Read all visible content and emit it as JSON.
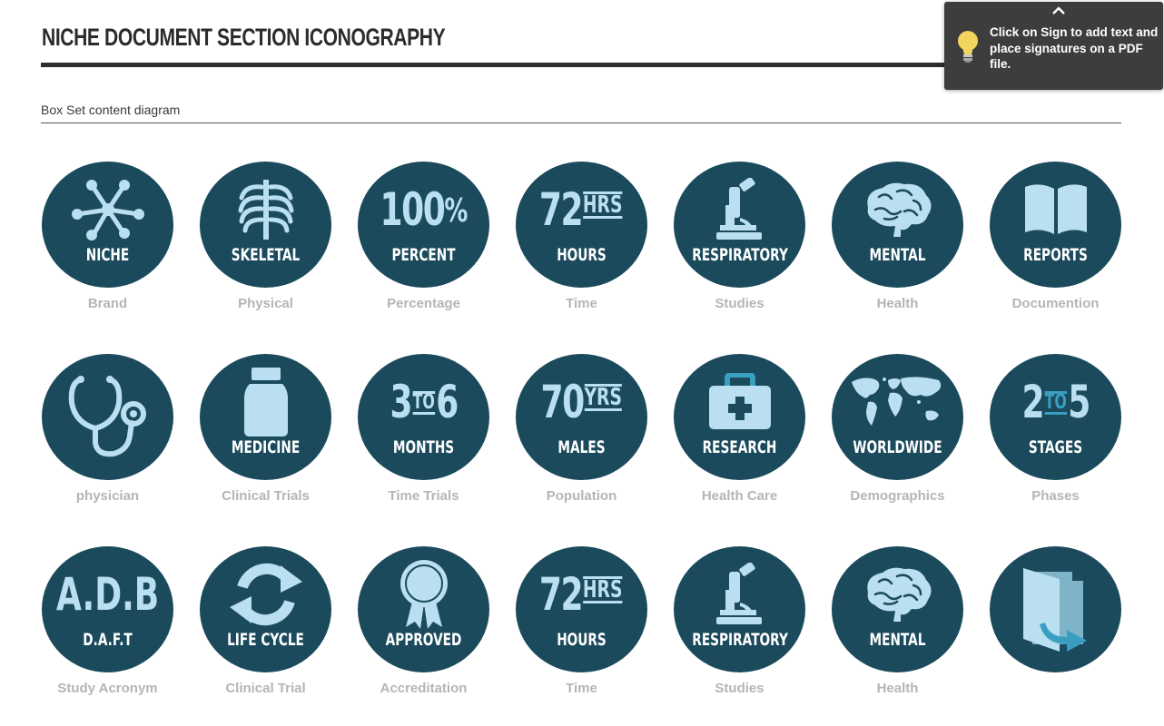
{
  "header": {
    "title": "NICHE DOCUMENT SECTION ICONOGRAPHY",
    "subtitle": "Box Set content diagram"
  },
  "tooltip": {
    "text": "Click on Sign to add text and place signatures on a PDF file.",
    "icon": "lightbulb-icon",
    "collapse_icon": "chevron-up-icon"
  },
  "colors": {
    "circle": "#1a4a5c",
    "icon": "#b9dff0",
    "label": "#ffffff",
    "caption": "#b5b5b5",
    "tooltip_bg": "#3d3d3d"
  },
  "rows": [
    [
      {
        "icon": "molecule-icon",
        "label": "NICHE",
        "caption": "Brand"
      },
      {
        "icon": "ribcage-icon",
        "label": "SKELETAL",
        "caption": "Physical"
      },
      {
        "icon": "percent-icon",
        "big": "100",
        "unit": "%",
        "label": "PERCENT",
        "caption": "Percentage"
      },
      {
        "icon": "hours-icon",
        "big": "72",
        "unit": "HRS",
        "label": "HOURS",
        "caption": "Time"
      },
      {
        "icon": "microscope-icon",
        "label": "RESPIRATORY",
        "caption": "Studies"
      },
      {
        "icon": "brain-icon",
        "label": "MENTAL",
        "caption": "Health"
      },
      {
        "icon": "book-icon",
        "label": "REPORTS",
        "caption": "Documention"
      }
    ],
    [
      {
        "icon": "stethoscope-icon",
        "label": "",
        "caption": "physician"
      },
      {
        "icon": "pill-bottle-icon",
        "label": "MEDICINE",
        "caption": "Clinical Trials"
      },
      {
        "icon": "range-icon",
        "big_a": "3",
        "mid": "TO",
        "big_b": "6",
        "label": "MONTHS",
        "caption": "Time Trials"
      },
      {
        "icon": "years-icon",
        "big": "70",
        "unit": "YRS",
        "label": "MALES",
        "caption": "Population"
      },
      {
        "icon": "medical-kit-icon",
        "label": "RESEARCH",
        "caption": "Health Care"
      },
      {
        "icon": "world-map-icon",
        "label": "WORLDWIDE",
        "caption": "Demographics"
      },
      {
        "icon": "range-icon",
        "big_a": "2",
        "mid": "TO",
        "big_b": "5",
        "label": "STAGES",
        "caption": "Phases"
      }
    ],
    [
      {
        "icon": "acronym-icon",
        "big": "A.D.B",
        "label": "D.A.F.T",
        "caption": "Study Acronym"
      },
      {
        "icon": "cycle-arrows-icon",
        "label": "LIFE  CYCLE",
        "caption": "Clinical Trial"
      },
      {
        "icon": "award-ribbon-icon",
        "label": "APPROVED",
        "caption": "Accreditation"
      },
      {
        "icon": "hours-icon",
        "big": "72",
        "unit": "HRS",
        "label": "HOURS",
        "caption": "Time"
      },
      {
        "icon": "microscope-icon",
        "label": "RESPIRATORY",
        "caption": "Studies"
      },
      {
        "icon": "brain-icon",
        "label": "MENTAL",
        "caption": "Health"
      },
      {
        "icon": "folder-export-icon",
        "label": "",
        "caption": ""
      }
    ]
  ]
}
